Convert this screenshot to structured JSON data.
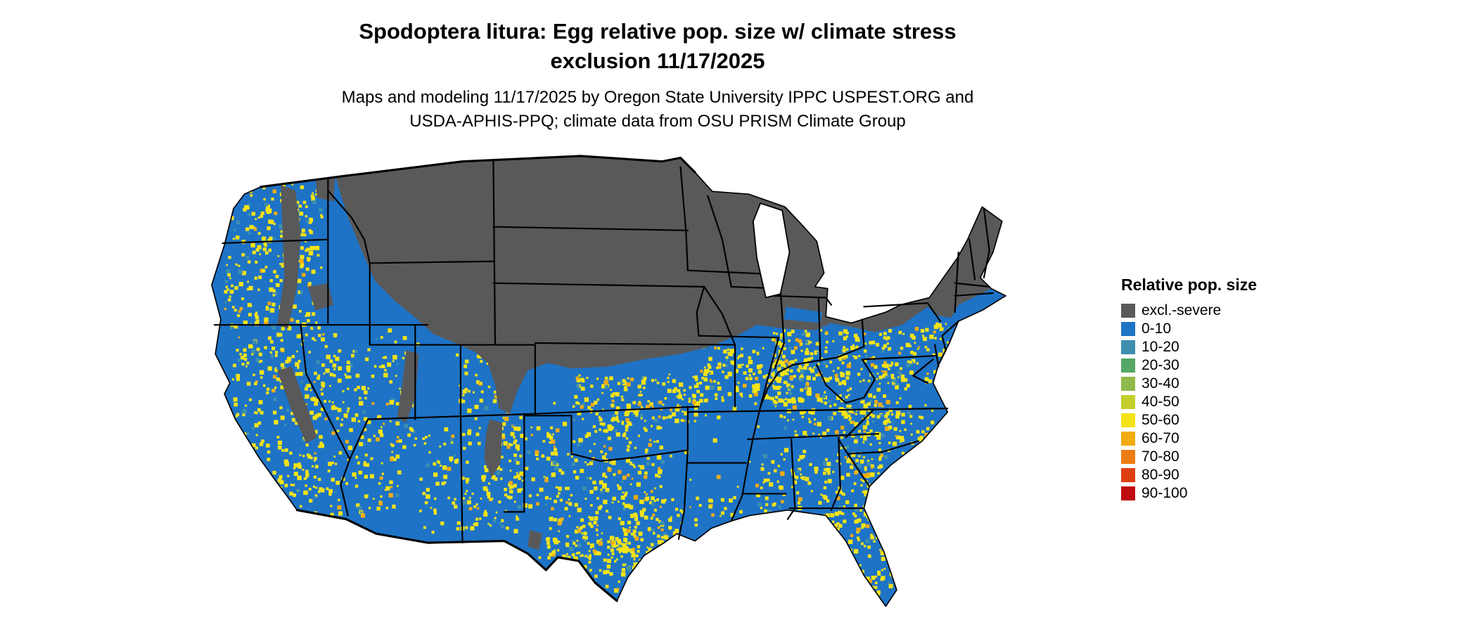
{
  "header": {
    "title_line1": "Spodoptera litura: Egg relative pop. size w/ climate stress",
    "title_line2": "exclusion 11/17/2025",
    "subtitle_line1": "Maps and modeling 11/17/2025 by Oregon State University IPPC USPEST.ORG and",
    "subtitle_line2": "USDA-APHIS-PPQ; climate data from OSU PRISM Climate Group"
  },
  "legend": {
    "title": "Relative pop. size",
    "items": [
      {
        "label": "excl.-severe",
        "color": "#595959"
      },
      {
        "label": "0-10",
        "color": "#1E73C6"
      },
      {
        "label": "10-20",
        "color": "#3E8FAD"
      },
      {
        "label": "20-30",
        "color": "#55A865"
      },
      {
        "label": "30-40",
        "color": "#8FB94A"
      },
      {
        "label": "40-50",
        "color": "#C4CF2E"
      },
      {
        "label": "50-60",
        "color": "#F4E317"
      },
      {
        "label": "60-70",
        "color": "#F2AC12"
      },
      {
        "label": "70-80",
        "color": "#EC7D13"
      },
      {
        "label": "80-90",
        "color": "#DD3F12"
      },
      {
        "label": "90-100",
        "color": "#C00C11"
      }
    ]
  },
  "map": {
    "region": "Continental United States",
    "border_color": "#000000",
    "background_color": "#ffffff"
  }
}
